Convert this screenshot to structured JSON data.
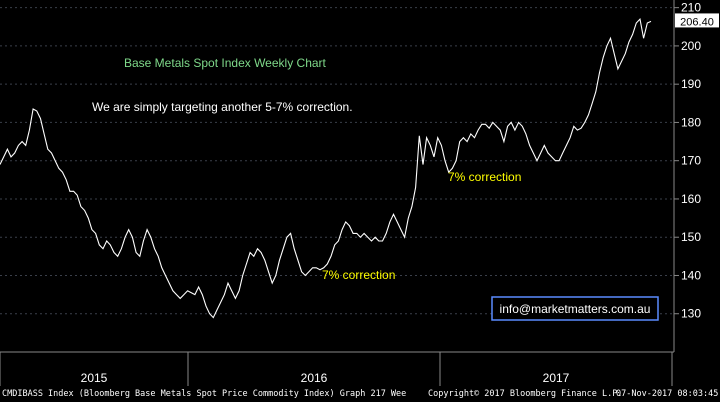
{
  "chart_data": {
    "type": "line",
    "title": "Base Metals Spot Index Weekly Chart",
    "subtitle": "We are simply targeting another 5-7% correction.",
    "ylim": [
      120,
      212
    ],
    "yticks": [
      130,
      140,
      150,
      160,
      170,
      180,
      190,
      200,
      210
    ],
    "xticks": [
      "2015",
      "2016",
      "2017"
    ],
    "last_value": "206.40",
    "grid": true,
    "series": [
      {
        "values": [
          169,
          171,
          173,
          171,
          172,
          174,
          175,
          174,
          178,
          183.5,
          183,
          181,
          177,
          173,
          172,
          170,
          168,
          167,
          165,
          162,
          162,
          161,
          158,
          157,
          155,
          152,
          151,
          148,
          147,
          149,
          148,
          146,
          145,
          147,
          150,
          152,
          150,
          146,
          145,
          149,
          152,
          150,
          147,
          145,
          142,
          140,
          138,
          136,
          135,
          134,
          135,
          136,
          135.5,
          135,
          137,
          135,
          132,
          130,
          129,
          131,
          133,
          135,
          138,
          136,
          134,
          136,
          140,
          143,
          146,
          145,
          147,
          146,
          144,
          141,
          138,
          140,
          144,
          147,
          150,
          151,
          147,
          144,
          141,
          140,
          141,
          142,
          142,
          141.5,
          142,
          143,
          145,
          148,
          149,
          152,
          154,
          153,
          151,
          151,
          150,
          151,
          150,
          149,
          150,
          149,
          149,
          151,
          154,
          156,
          154,
          152,
          150,
          155,
          158,
          163,
          176.5,
          169,
          176,
          174,
          171,
          176,
          174,
          170,
          167,
          168,
          170,
          175,
          176,
          175,
          177,
          176,
          178,
          179.5,
          179.5,
          178.5,
          180,
          179,
          178,
          175,
          179,
          180,
          178,
          180,
          179,
          177,
          174,
          172,
          170,
          172,
          174,
          172,
          171,
          170,
          170,
          172,
          174,
          176,
          179,
          178,
          178.5,
          180,
          182,
          185,
          188,
          193,
          197,
          200,
          202,
          198,
          194,
          196,
          198,
          201,
          203,
          206,
          207,
          202,
          206,
          206.4
        ]
      }
    ],
    "annotations": [
      "7% correction",
      "7% correction"
    ]
  },
  "watermark": "info@marketmatters.com.au",
  "footer": {
    "source": "CMDIBASS Index (Bloomberg Base Metals Spot Price Commodity Index) Graph 217  Wee",
    "copyright": "Copyright© 2017 Bloomberg Finance L.P.",
    "timestamp": "07-Nov-2017 08:03:45"
  },
  "colors": {
    "background": "#000000",
    "line": "#ffffff",
    "grid": "#3a3f4a",
    "title": "#7fd98a",
    "annotation": "#ffff00",
    "watermark_border": "#5b8cff",
    "last_value_bg": "#ffffff"
  }
}
